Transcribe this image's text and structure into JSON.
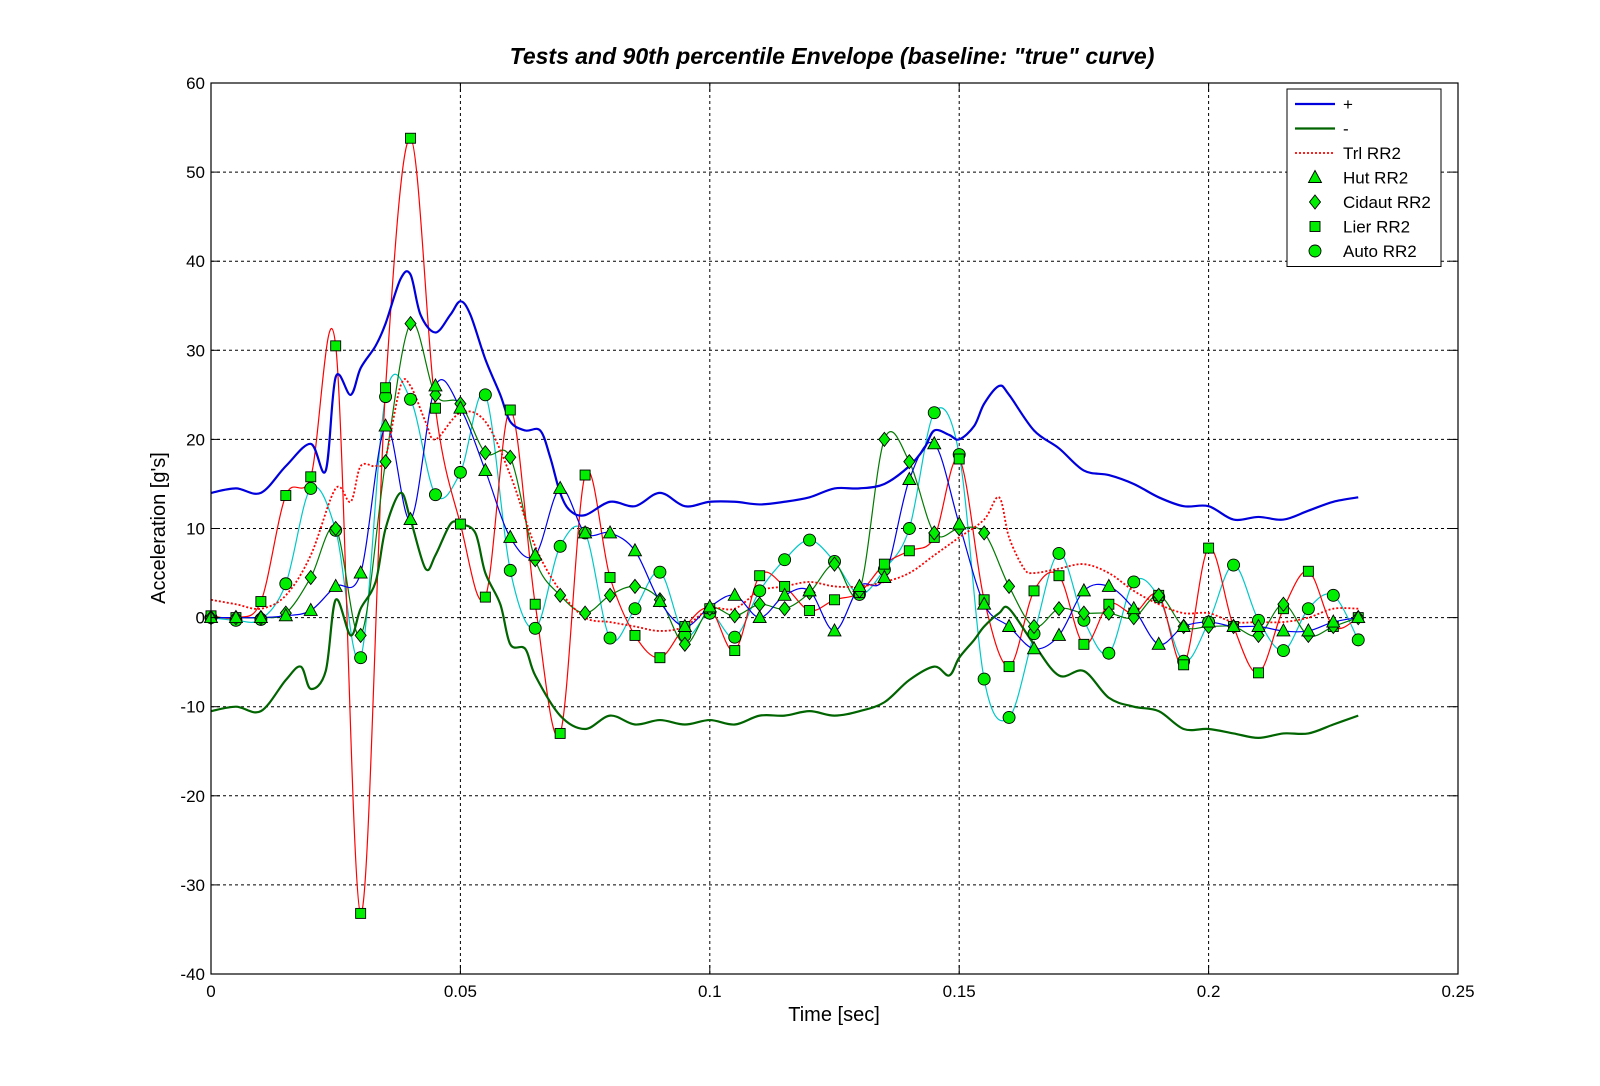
{
  "chart_data": {
    "type": "line",
    "title": "Tests and 90th percentile Envelope (baseline: \"true\" curve)",
    "xlabel": "Time [sec]",
    "ylabel": "Acceleration [g's]",
    "xlim": [
      0,
      0.25
    ],
    "ylim": [
      -40,
      60
    ],
    "xticks": [
      0,
      0.05,
      0.1,
      0.15,
      0.2,
      0.25
    ],
    "xtick_labels": [
      "0",
      "0.05",
      "0.1",
      "0.15",
      "0.2",
      "0.25"
    ],
    "yticks": [
      -40,
      -30,
      -20,
      -10,
      0,
      10,
      20,
      30,
      40,
      50,
      60
    ],
    "ytick_labels": [
      "-40",
      "-30",
      "-20",
      "-10",
      "0",
      "10",
      "20",
      "30",
      "40",
      "50",
      "60"
    ],
    "grid": true,
    "legend_position": "top-right",
    "series": [
      {
        "name": "+",
        "style": "solid",
        "width": 2.2,
        "color": "#0000dd",
        "marker": "none",
        "x": [
          0,
          0.005,
          0.01,
          0.015,
          0.02,
          0.023,
          0.025,
          0.028,
          0.03,
          0.033,
          0.035,
          0.038,
          0.04,
          0.042,
          0.045,
          0.048,
          0.05,
          0.052,
          0.055,
          0.058,
          0.06,
          0.063,
          0.066,
          0.068,
          0.07,
          0.072,
          0.075,
          0.08,
          0.085,
          0.09,
          0.095,
          0.1,
          0.105,
          0.11,
          0.115,
          0.12,
          0.125,
          0.13,
          0.135,
          0.14,
          0.143,
          0.145,
          0.148,
          0.15,
          0.153,
          0.155,
          0.158,
          0.16,
          0.165,
          0.17,
          0.175,
          0.18,
          0.185,
          0.19,
          0.195,
          0.2,
          0.205,
          0.21,
          0.215,
          0.22,
          0.225,
          0.23
        ],
        "y": [
          14,
          14.5,
          14,
          17,
          19.5,
          16.5,
          27,
          25,
          28,
          30.5,
          33,
          38,
          38.5,
          34,
          32,
          34,
          35.5,
          34,
          29,
          25,
          22,
          21,
          21,
          18,
          14,
          12,
          11.5,
          13,
          12.5,
          14,
          12.5,
          13,
          13,
          12.7,
          13,
          13.5,
          14.5,
          14.5,
          15,
          17,
          19,
          21,
          20.5,
          20,
          21.5,
          24,
          26,
          25,
          21,
          19,
          16.5,
          16,
          15,
          13.5,
          12.5,
          12.5,
          11,
          11.3,
          11,
          12,
          13,
          13.5
        ]
      },
      {
        "name": "-",
        "style": "solid",
        "width": 2.2,
        "color": "#006400",
        "marker": "none",
        "x": [
          0,
          0.005,
          0.01,
          0.015,
          0.018,
          0.02,
          0.023,
          0.025,
          0.028,
          0.03,
          0.033,
          0.035,
          0.038,
          0.04,
          0.043,
          0.045,
          0.048,
          0.05,
          0.053,
          0.055,
          0.058,
          0.06,
          0.063,
          0.065,
          0.07,
          0.075,
          0.08,
          0.085,
          0.09,
          0.095,
          0.1,
          0.105,
          0.11,
          0.115,
          0.12,
          0.125,
          0.13,
          0.135,
          0.14,
          0.145,
          0.148,
          0.15,
          0.153,
          0.155,
          0.158,
          0.16,
          0.165,
          0.17,
          0.175,
          0.18,
          0.185,
          0.19,
          0.195,
          0.2,
          0.205,
          0.21,
          0.215,
          0.22,
          0.225,
          0.23
        ],
        "y": [
          -10.5,
          -10,
          -10.5,
          -7,
          -5.5,
          -8,
          -6,
          2,
          -2,
          1,
          4,
          10,
          14,
          11,
          5.5,
          7,
          10.5,
          10.5,
          9.5,
          5,
          1.5,
          -3,
          -3.5,
          -6.5,
          -11,
          -12.5,
          -11,
          -12,
          -11.5,
          -12,
          -11.5,
          -12,
          -11,
          -11,
          -10.5,
          -11,
          -10.5,
          -9.5,
          -7,
          -5.5,
          -6.5,
          -4.5,
          -2.5,
          -1,
          0.5,
          1,
          -3,
          -6.5,
          -6,
          -9,
          -10,
          -10.5,
          -12.5,
          -12.5,
          -13,
          -13.5,
          -13,
          -13,
          -12,
          -11
        ]
      },
      {
        "name": "Trl RR2",
        "style": "dotted",
        "width": 1.8,
        "color": "#ff0000",
        "marker": "none",
        "x": [
          0,
          0.005,
          0.01,
          0.015,
          0.02,
          0.025,
          0.028,
          0.03,
          0.033,
          0.035,
          0.038,
          0.04,
          0.043,
          0.045,
          0.05,
          0.055,
          0.06,
          0.065,
          0.07,
          0.075,
          0.08,
          0.085,
          0.09,
          0.095,
          0.1,
          0.105,
          0.11,
          0.115,
          0.12,
          0.125,
          0.13,
          0.135,
          0.14,
          0.145,
          0.15,
          0.155,
          0.158,
          0.16,
          0.163,
          0.165,
          0.17,
          0.175,
          0.18,
          0.185,
          0.19,
          0.195,
          0.2,
          0.205,
          0.21,
          0.215,
          0.22,
          0.225,
          0.23
        ],
        "y": [
          2,
          1.5,
          1,
          2.5,
          7,
          14.5,
          13,
          17,
          17,
          18,
          26,
          26,
          22,
          20,
          23,
          22,
          16,
          8,
          3,
          0,
          -0.5,
          -1,
          -1.5,
          -1,
          1,
          1,
          3,
          3.5,
          4,
          3.5,
          3.5,
          4,
          5,
          7,
          9,
          11,
          13.5,
          9,
          5.5,
          5,
          5.5,
          6,
          5,
          3,
          1.5,
          0.5,
          0.5,
          -0.5,
          -0.5,
          -0.5,
          0,
          1,
          1
        ]
      },
      {
        "name": "Hut RR2",
        "style": "solid",
        "width": 1.2,
        "color": "#0000ee",
        "marker": "triangle",
        "x": [
          0,
          0.005,
          0.01,
          0.015,
          0.02,
          0.025,
          0.03,
          0.035,
          0.04,
          0.045,
          0.05,
          0.055,
          0.06,
          0.065,
          0.07,
          0.075,
          0.08,
          0.085,
          0.09,
          0.095,
          0.1,
          0.105,
          0.11,
          0.115,
          0.12,
          0.125,
          0.13,
          0.135,
          0.14,
          0.145,
          0.15,
          0.155,
          0.16,
          0.165,
          0.17,
          0.175,
          0.18,
          0.185,
          0.19,
          0.195,
          0.2,
          0.205,
          0.21,
          0.215,
          0.22,
          0.225,
          0.23
        ],
        "y": [
          0,
          0,
          0,
          0.2,
          0.8,
          3.5,
          5,
          21.5,
          11,
          26,
          23.5,
          16.5,
          9,
          7,
          14.5,
          9.5,
          9.5,
          7.5,
          1.8,
          -1,
          1.2,
          2.5,
          0,
          2.5,
          3,
          -1.5,
          3.5,
          4.5,
          15.5,
          19.5,
          10.5,
          1.5,
          -1,
          -3.5,
          -2,
          3,
          3.5,
          1,
          -3,
          -1,
          -0.5,
          -1,
          -1,
          -1.5,
          -1.5,
          -0.5,
          0
        ]
      },
      {
        "name": "Cidaut RR2",
        "style": "solid",
        "width": 1.2,
        "color": "#007a00",
        "marker": "diamond",
        "x": [
          0,
          0.005,
          0.01,
          0.015,
          0.02,
          0.025,
          0.03,
          0.035,
          0.04,
          0.045,
          0.05,
          0.055,
          0.06,
          0.065,
          0.07,
          0.075,
          0.08,
          0.085,
          0.09,
          0.095,
          0.1,
          0.105,
          0.11,
          0.115,
          0.12,
          0.125,
          0.13,
          0.135,
          0.14,
          0.145,
          0.15,
          0.155,
          0.16,
          0.165,
          0.17,
          0.175,
          0.18,
          0.185,
          0.19,
          0.195,
          0.2,
          0.205,
          0.21,
          0.215,
          0.22,
          0.225,
          0.23
        ],
        "y": [
          0,
          0,
          0,
          0.5,
          4.5,
          10,
          -2,
          17.5,
          33,
          25,
          24,
          18.5,
          18,
          6.5,
          2.5,
          0.5,
          2.5,
          3.5,
          2,
          -3,
          1,
          0.2,
          1.5,
          1,
          2.8,
          6,
          3,
          20,
          17.5,
          9.5,
          10,
          9.5,
          3.5,
          -1,
          1,
          0.5,
          0.5,
          0,
          2.5,
          -1,
          -1,
          -1,
          -2,
          1.5,
          -2,
          -1,
          0
        ]
      },
      {
        "name": "Lier RR2",
        "style": "solid",
        "width": 1.2,
        "color": "#ff0000",
        "marker": "square",
        "x": [
          0,
          0.005,
          0.01,
          0.015,
          0.02,
          0.025,
          0.03,
          0.035,
          0.04,
          0.045,
          0.05,
          0.055,
          0.06,
          0.065,
          0.07,
          0.075,
          0.08,
          0.085,
          0.09,
          0.095,
          0.1,
          0.105,
          0.11,
          0.115,
          0.12,
          0.125,
          0.13,
          0.135,
          0.14,
          0.145,
          0.15,
          0.155,
          0.16,
          0.165,
          0.17,
          0.175,
          0.18,
          0.185,
          0.19,
          0.195,
          0.2,
          0.205,
          0.21,
          0.215,
          0.22,
          0.225,
          0.23
        ],
        "y": [
          0.2,
          0,
          1.8,
          13.7,
          15.8,
          30.5,
          -33.2,
          25.8,
          53.8,
          23.5,
          10.5,
          2.3,
          23.3,
          1.5,
          -13,
          16,
          4.5,
          -2,
          -4.5,
          -1,
          1,
          -3.7,
          4.7,
          3.5,
          0.8,
          2,
          2.8,
          6,
          7.5,
          9,
          17.8,
          2,
          -5.5,
          3,
          4.7,
          -3,
          1.5,
          0.5,
          2.5,
          -5.3,
          7.8,
          -1,
          -6.2,
          1,
          5.2,
          -1,
          0
        ]
      },
      {
        "name": "Auto RR2",
        "style": "solid",
        "width": 1.2,
        "color": "#00c8c8",
        "marker": "circle",
        "x": [
          0,
          0.005,
          0.01,
          0.015,
          0.02,
          0.025,
          0.03,
          0.035,
          0.04,
          0.045,
          0.05,
          0.055,
          0.06,
          0.065,
          0.07,
          0.075,
          0.08,
          0.085,
          0.09,
          0.095,
          0.1,
          0.105,
          0.11,
          0.115,
          0.12,
          0.125,
          0.13,
          0.135,
          0.14,
          0.145,
          0.15,
          0.155,
          0.16,
          0.165,
          0.17,
          0.175,
          0.18,
          0.185,
          0.19,
          0.195,
          0.2,
          0.205,
          0.21,
          0.215,
          0.22,
          0.225,
          0.23
        ],
        "y": [
          0,
          -0.3,
          -0.2,
          3.8,
          14.5,
          9.8,
          -4.5,
          24.8,
          24.5,
          13.8,
          16.3,
          25,
          5.3,
          -1.2,
          8,
          9.5,
          -2.3,
          1,
          5.1,
          -2,
          0.5,
          -2.2,
          3,
          6.5,
          8.7,
          6.3,
          2.6,
          5.4,
          10,
          23,
          18.3,
          -6.9,
          -11.2,
          -1.8,
          7.2,
          -0.3,
          -4,
          4,
          2.3,
          -4.9,
          -0.5,
          5.9,
          -0.3,
          -3.7,
          1,
          2.5,
          -2.5
        ]
      }
    ]
  }
}
